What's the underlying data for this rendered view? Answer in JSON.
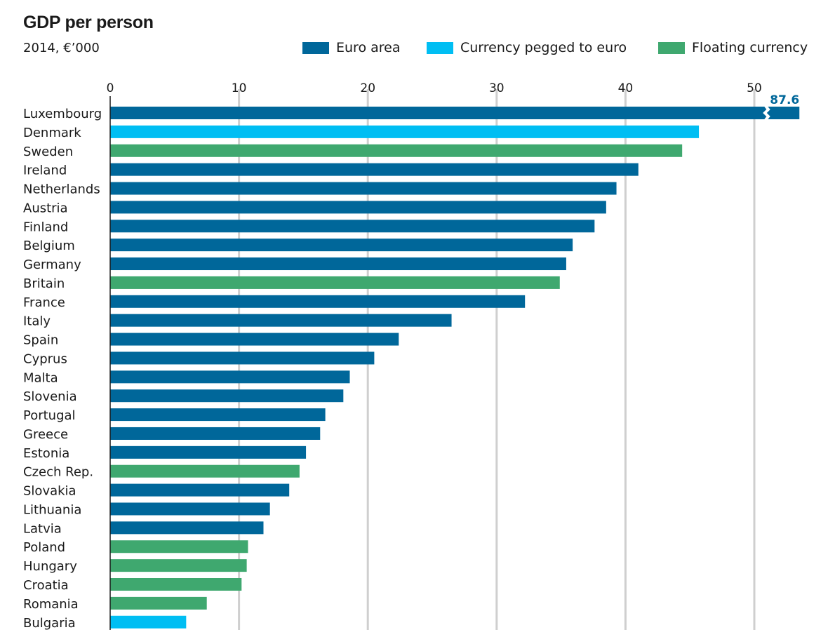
{
  "chart_data": {
    "type": "bar",
    "orientation": "horizontal",
    "title": "GDP per person",
    "subtitle": "2014, €’000",
    "xlabel": "",
    "ylabel": "",
    "xlim": [
      0,
      53.5
    ],
    "xticks": [
      0,
      10,
      20,
      30,
      40,
      50
    ],
    "xtick_labels": [
      "0",
      "10",
      "20",
      "30",
      "40",
      "50"
    ],
    "grid": true,
    "legend_position": "top-right",
    "legend": [
      {
        "key": "euro",
        "label": "Euro area",
        "color": "#00679a"
      },
      {
        "key": "pegged",
        "label": "Currency pegged to euro",
        "color": "#00bef3"
      },
      {
        "key": "floating",
        "label": "Floating currency",
        "color": "#3fa86f"
      }
    ],
    "categories": [
      "Luxembourg",
      "Denmark",
      "Sweden",
      "Ireland",
      "Netherlands",
      "Austria",
      "Finland",
      "Belgium",
      "Germany",
      "Britain",
      "France",
      "Italy",
      "Spain",
      "Cyprus",
      "Malta",
      "Slovenia",
      "Portugal",
      "Greece",
      "Estonia",
      "Czech Rep.",
      "Slovakia",
      "Lithuania",
      "Latvia",
      "Poland",
      "Hungary",
      "Croatia",
      "Romania",
      "Bulgaria"
    ],
    "values": [
      87.6,
      45.7,
      44.4,
      41.0,
      39.3,
      38.5,
      37.6,
      35.9,
      35.4,
      34.9,
      32.2,
      26.5,
      22.4,
      20.5,
      18.6,
      18.1,
      16.7,
      16.3,
      15.2,
      14.7,
      13.9,
      12.4,
      11.9,
      10.7,
      10.6,
      10.2,
      7.5,
      5.9
    ],
    "groups": [
      "euro",
      "pegged",
      "floating",
      "euro",
      "euro",
      "euro",
      "euro",
      "euro",
      "euro",
      "floating",
      "euro",
      "euro",
      "euro",
      "euro",
      "euro",
      "euro",
      "euro",
      "euro",
      "euro",
      "floating",
      "euro",
      "euro",
      "euro",
      "floating",
      "floating",
      "floating",
      "floating",
      "pegged"
    ],
    "annotations": [
      {
        "category": "Luxembourg",
        "text": "87.6",
        "note": "axis break; bar truncated"
      }
    ]
  }
}
